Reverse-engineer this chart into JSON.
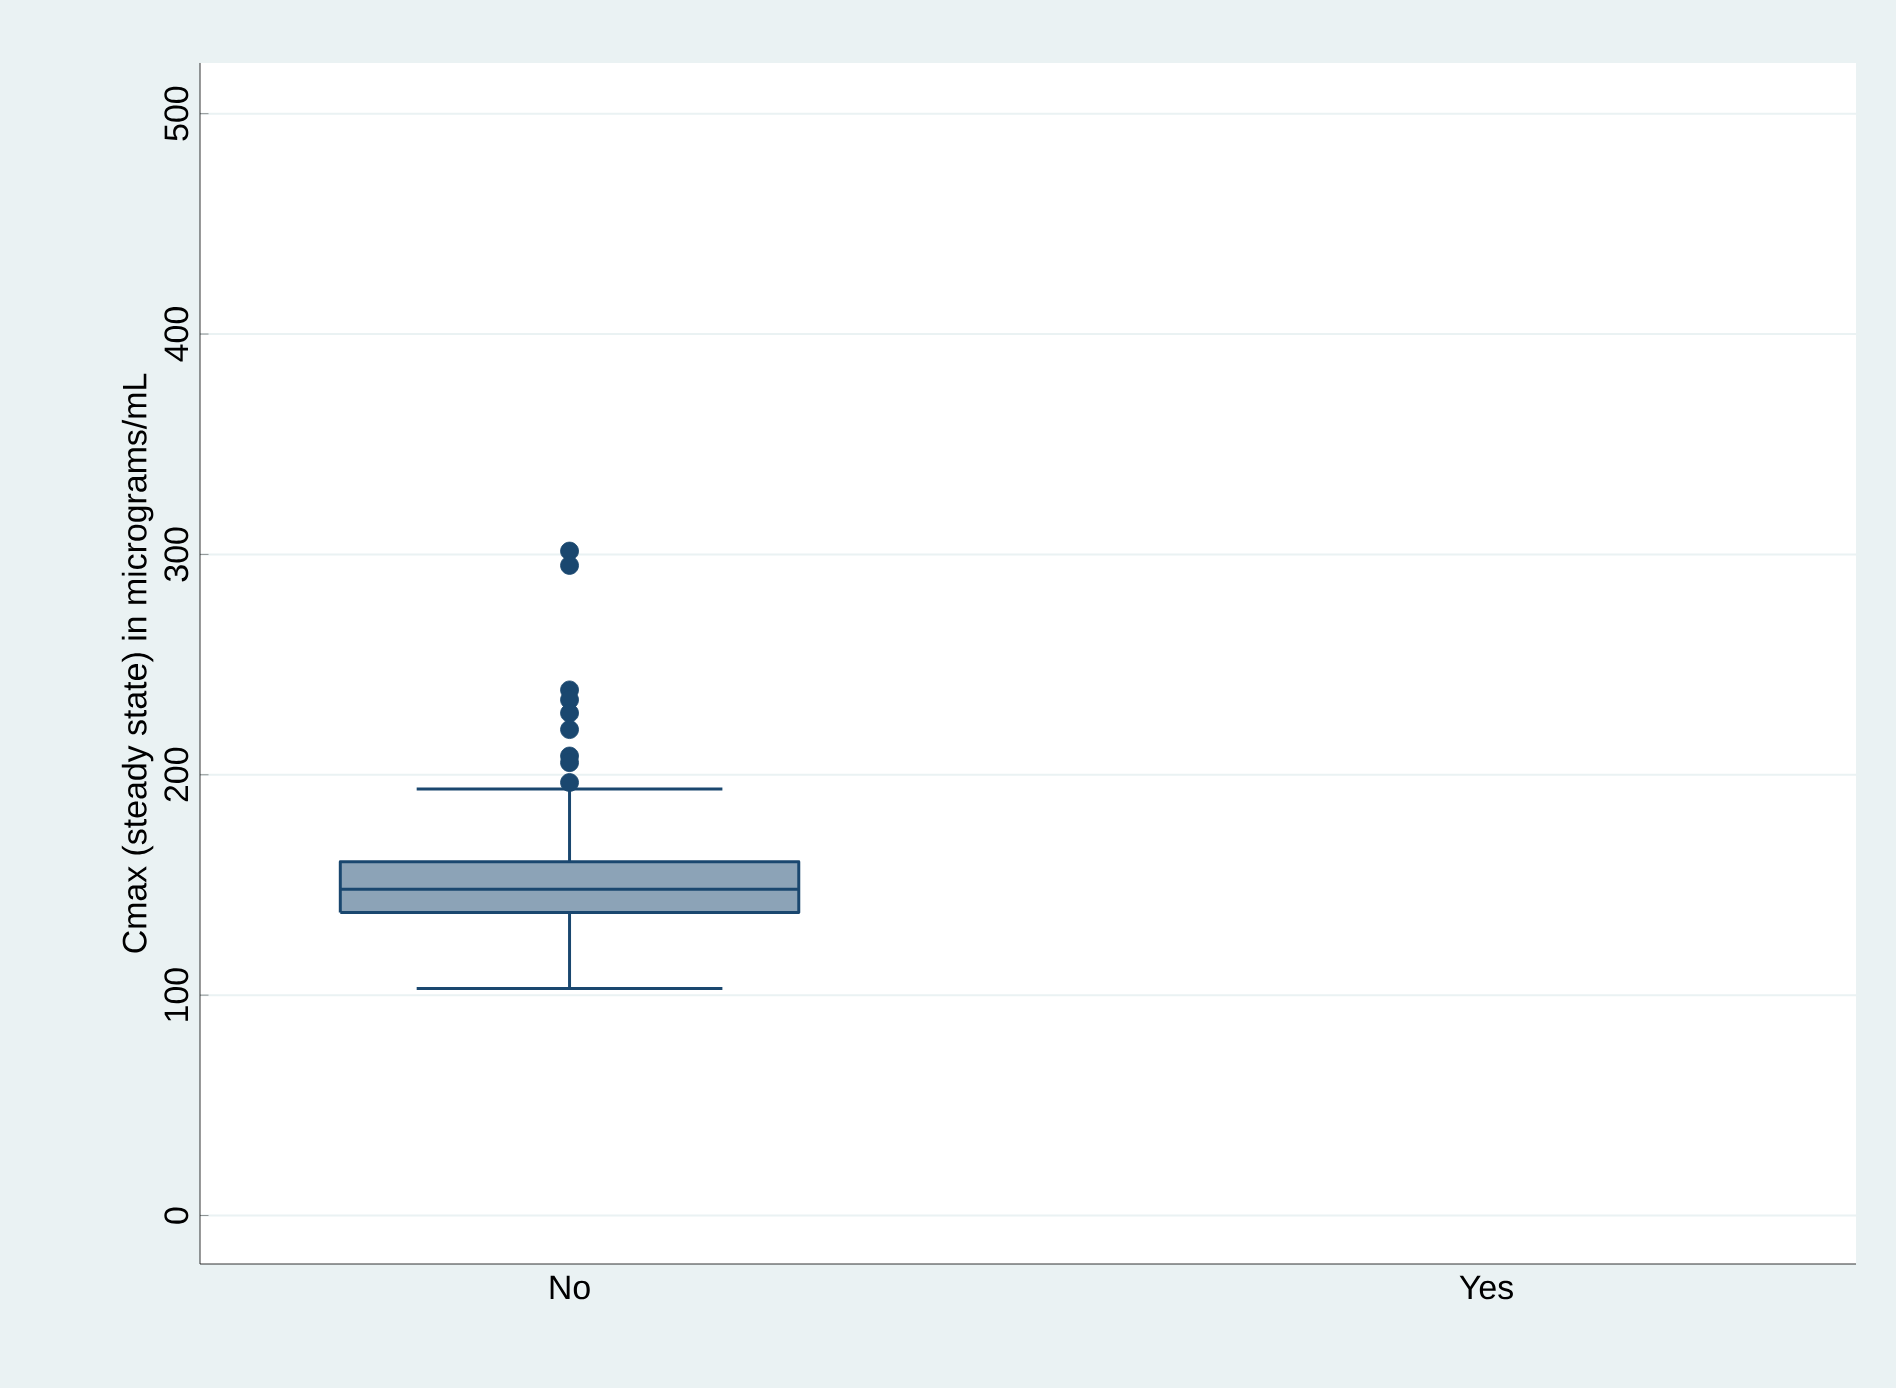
{
  "chart_data": {
    "type": "box",
    "ylabel": "Cmax (steady state) in micrograms/mL",
    "categories": [
      "No",
      "Yes"
    ],
    "boxes": [
      {
        "low": 103,
        "q1": 137.5,
        "median": 148,
        "q3": 160.5,
        "high": 193.5,
        "outliers": [
          301.5,
          295,
          238.5,
          234,
          228,
          220.5,
          208.5,
          205.5,
          196.5
        ]
      },
      null
    ],
    "color": "#1a476f",
    "ylim": [
      -22,
      523
    ],
    "yticks": [
      0,
      100,
      200,
      300,
      400,
      500
    ],
    "grid": "y"
  }
}
